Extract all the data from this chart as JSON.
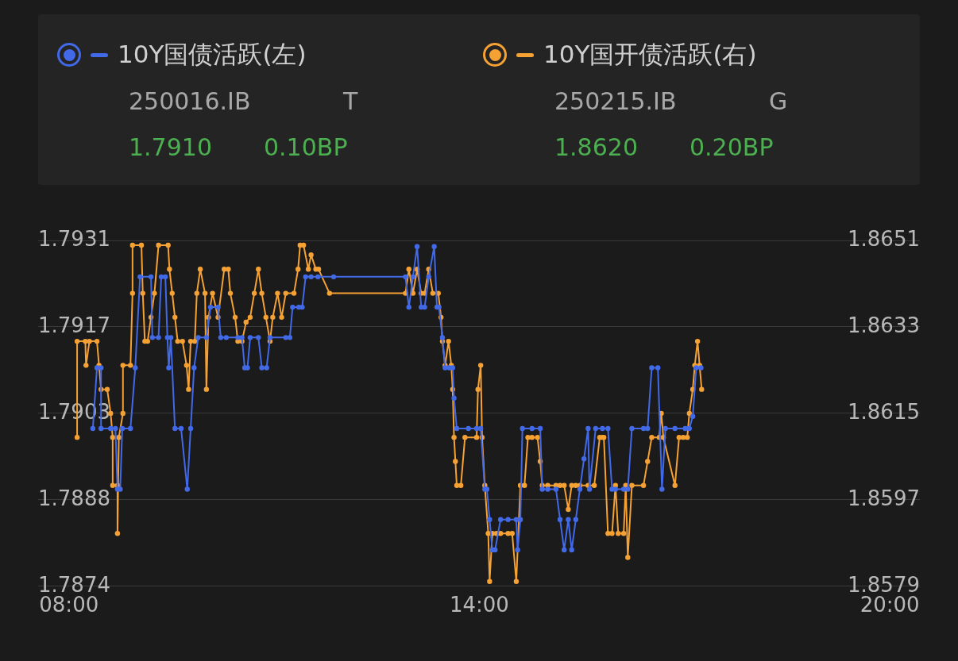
{
  "chart_data": {
    "type": "line",
    "legend": "top",
    "grid": "y",
    "marker": "circle",
    "line_style": "solid",
    "xlim": [
      7.55,
      20.44
    ],
    "xticks": [
      {
        "value": 8,
        "label": "08:00"
      },
      {
        "value": 14,
        "label": "14:00"
      },
      {
        "value": 20,
        "label": "20:00"
      }
    ],
    "ylim": [
      1.7874,
      1.7931
    ],
    "yticks": [
      1.7874,
      {
        "value": 1.788825,
        "label": "1.7888"
      },
      {
        "value": 1.79025,
        "label": "1.7903"
      },
      {
        "value": 1.791675,
        "label": "1.7917"
      },
      1.7931
    ],
    "y2lim": [
      1.8579,
      1.8651
    ],
    "y2ticks": [
      1.8579,
      1.8597,
      1.8615,
      1.8633,
      1.8651
    ],
    "annotations": [
      "250016.IB",
      "T",
      "1.7910",
      "0.10BP",
      "250215.IB",
      "G",
      "1.8620",
      "0.20BP"
    ],
    "series": [
      {
        "name": "10Y国债活跃(左)",
        "color": "#4169e8",
        "axis": "y",
        "x": [
          8.35,
          8.41,
          8.47,
          8.47,
          8.61,
          8.68,
          8.71,
          8.75,
          8.78,
          8.9,
          8.97,
          9.04,
          9.2,
          9.22,
          9.31,
          9.35,
          9.41,
          9.44,
          9.46,
          9.49,
          9.55,
          9.64,
          9.73,
          9.78,
          9.83,
          9.89,
          10.01,
          10.07,
          10.18,
          10.22,
          10.3,
          10.47,
          10.53,
          10.57,
          10.61,
          10.65,
          10.77,
          10.82,
          10.89,
          10.94,
          11.17,
          11.23,
          11.27,
          11.36,
          11.41,
          11.46,
          11.54,
          11.64,
          11.87,
          12.92,
          12.97,
          13.03,
          13.09,
          13.15,
          13.2,
          13.26,
          13.34,
          13.38,
          13.41,
          13.46,
          13.5,
          13.56,
          13.61,
          13.63,
          13.67,
          13.84,
          13.96,
          14.02,
          14.08,
          14.11,
          14.15,
          14.19,
          14.23,
          14.31,
          14.42,
          14.54,
          14.56,
          14.6,
          14.63,
          14.77,
          14.89,
          14.92,
          15.0,
          15.12,
          15.18,
          15.24,
          15.3,
          15.35,
          15.41,
          15.47,
          15.53,
          15.59,
          15.61,
          15.7,
          15.8,
          15.88,
          15.94,
          15.99,
          16.11,
          16.17,
          16.23,
          16.4,
          16.46,
          16.52,
          16.61,
          16.67,
          16.72,
          16.86,
          17.01,
          17.07,
          17.12,
          17.17,
          17.24
        ],
        "values": [
          1.79,
          1.791,
          1.791,
          1.79,
          1.79,
          1.79,
          1.789,
          1.789,
          1.79,
          1.79,
          1.791,
          1.7925,
          1.7925,
          1.7915,
          1.7915,
          1.7925,
          1.7925,
          1.7915,
          1.791,
          1.7915,
          1.79,
          1.79,
          1.789,
          1.79,
          1.791,
          1.7915,
          1.7915,
          1.792,
          1.792,
          1.7915,
          1.7915,
          1.7915,
          1.7915,
          1.791,
          1.791,
          1.7915,
          1.7915,
          1.791,
          1.791,
          1.7915,
          1.7915,
          1.7915,
          1.792,
          1.792,
          1.792,
          1.7925,
          1.7925,
          1.7925,
          1.7925,
          1.7925,
          1.792,
          1.7925,
          1.793,
          1.792,
          1.792,
          1.7925,
          1.793,
          1.792,
          1.792,
          1.7915,
          1.791,
          1.791,
          1.791,
          1.7905,
          1.79,
          1.79,
          1.79,
          1.79,
          1.789,
          1.789,
          1.7885,
          1.788,
          1.788,
          1.7885,
          1.7885,
          1.7885,
          1.788,
          1.7885,
          1.79,
          1.79,
          1.79,
          1.789,
          1.789,
          1.789,
          1.7885,
          1.788,
          1.7885,
          1.788,
          1.7885,
          1.789,
          1.7895,
          1.79,
          1.789,
          1.79,
          1.79,
          1.79,
          1.789,
          1.789,
          1.789,
          1.789,
          1.79,
          1.79,
          1.79,
          1.791,
          1.791,
          1.789,
          1.79,
          1.79,
          1.79,
          1.79,
          1.7902,
          1.791,
          1.791
        ]
      },
      {
        "name": "10Y国开债活跃(右)",
        "color": "#f5a133",
        "axis": "y2",
        "x": [
          8.12,
          8.12,
          8.24,
          8.25,
          8.3,
          8.41,
          8.44,
          8.47,
          8.56,
          8.61,
          8.64,
          8.64,
          8.71,
          8.71,
          8.73,
          8.79,
          8.79,
          8.9,
          8.93,
          8.93,
          9.06,
          9.08,
          9.11,
          9.15,
          9.2,
          9.25,
          9.31,
          9.45,
          9.47,
          9.51,
          9.55,
          9.59,
          9.66,
          9.72,
          9.75,
          9.78,
          9.84,
          9.87,
          9.92,
          9.99,
          10.01,
          10.04,
          10.1,
          10.18,
          10.27,
          10.33,
          10.36,
          10.43,
          10.47,
          10.53,
          10.59,
          10.65,
          10.71,
          10.77,
          10.82,
          10.88,
          10.94,
          10.98,
          11.05,
          11.11,
          11.17,
          11.29,
          11.35,
          11.38,
          11.43,
          11.5,
          11.54,
          11.61,
          11.65,
          11.81,
          12.92,
          12.97,
          13.03,
          13.09,
          13.15,
          13.2,
          13.26,
          13.32,
          13.4,
          13.44,
          13.46,
          13.5,
          13.55,
          13.59,
          13.61,
          13.63,
          13.65,
          13.67,
          13.73,
          13.79,
          13.96,
          13.98,
          14.02,
          14.04,
          14.08,
          14.13,
          14.15,
          14.19,
          14.25,
          14.31,
          14.42,
          14.48,
          14.54,
          14.6,
          14.66,
          14.71,
          14.77,
          14.85,
          14.89,
          14.92,
          15.0,
          15.12,
          15.18,
          15.24,
          15.3,
          15.35,
          15.41,
          15.47,
          15.59,
          15.68,
          15.76,
          15.8,
          15.82,
          15.88,
          15.94,
          15.99,
          16.03,
          16.11,
          16.14,
          16.17,
          16.23,
          16.4,
          16.46,
          16.52,
          16.63,
          16.66,
          16.69,
          16.86,
          16.92,
          16.98,
          17.04,
          17.07,
          17.12,
          17.15,
          17.19,
          17.22,
          17.25
        ],
        "values": [
          1.861,
          1.863,
          1.863,
          1.8625,
          1.863,
          1.863,
          1.8625,
          1.862,
          1.862,
          1.8615,
          1.861,
          1.86,
          1.86,
          1.859,
          1.861,
          1.8615,
          1.8625,
          1.8625,
          1.864,
          1.865,
          1.865,
          1.864,
          1.863,
          1.863,
          1.8635,
          1.864,
          1.865,
          1.865,
          1.8645,
          1.864,
          1.8635,
          1.863,
          1.863,
          1.8625,
          1.862,
          1.863,
          1.863,
          1.864,
          1.8645,
          1.864,
          1.862,
          1.8635,
          1.864,
          1.8635,
          1.8645,
          1.8645,
          1.864,
          1.8635,
          1.863,
          1.863,
          1.8634,
          1.8635,
          1.864,
          1.8645,
          1.864,
          1.8635,
          1.863,
          1.8635,
          1.864,
          1.8635,
          1.864,
          1.864,
          1.8645,
          1.865,
          1.865,
          1.8645,
          1.8648,
          1.8645,
          1.8645,
          1.864,
          1.864,
          1.8645,
          1.864,
          1.8645,
          1.864,
          1.864,
          1.8645,
          1.864,
          1.864,
          1.8635,
          1.863,
          1.8625,
          1.863,
          1.8625,
          1.862,
          1.861,
          1.8605,
          1.86,
          1.86,
          1.861,
          1.861,
          1.862,
          1.8625,
          1.861,
          1.86,
          1.859,
          1.858,
          1.859,
          1.859,
          1.859,
          1.859,
          1.859,
          1.858,
          1.86,
          1.86,
          1.861,
          1.861,
          1.861,
          1.8605,
          1.86,
          1.86,
          1.86,
          1.86,
          1.86,
          1.8595,
          1.86,
          1.86,
          1.86,
          1.86,
          1.86,
          1.861,
          1.861,
          1.861,
          1.859,
          1.859,
          1.86,
          1.859,
          1.859,
          1.86,
          1.8585,
          1.86,
          1.86,
          1.8605,
          1.861,
          1.861,
          1.8615,
          1.861,
          1.86,
          1.861,
          1.861,
          1.861,
          1.8615,
          1.862,
          1.8625,
          1.863,
          1.8625,
          1.862
        ]
      }
    ]
  }
}
